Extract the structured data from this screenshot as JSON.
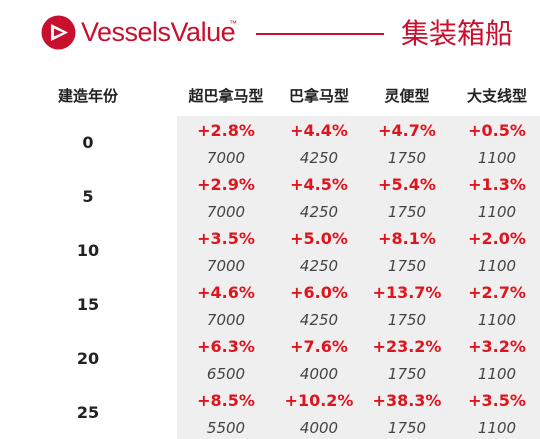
{
  "brand": {
    "name": "VesselsValue",
    "trademark": "™",
    "title": "集装箱船",
    "color": "#c8102e"
  },
  "table": {
    "age_header": "建造年份",
    "columns": [
      "超巴拿马型",
      "巴拿马型",
      "灵便型",
      "大支线型"
    ],
    "rows": [
      {
        "age": "0",
        "changes": [
          "+2.8%",
          "+4.4%",
          "+4.7%",
          "+0.5%"
        ],
        "sizes": [
          "7000",
          "4250",
          "1750",
          "1100"
        ]
      },
      {
        "age": "5",
        "changes": [
          "+2.9%",
          "+4.5%",
          "+5.4%",
          "+1.3%"
        ],
        "sizes": [
          "7000",
          "4250",
          "1750",
          "1100"
        ]
      },
      {
        "age": "10",
        "changes": [
          "+3.5%",
          "+5.0%",
          "+8.1%",
          "+2.0%"
        ],
        "sizes": [
          "7000",
          "4250",
          "1750",
          "1100"
        ]
      },
      {
        "age": "15",
        "changes": [
          "+4.6%",
          "+6.0%",
          "+13.7%",
          "+2.7%"
        ],
        "sizes": [
          "7000",
          "4250",
          "1750",
          "1100"
        ]
      },
      {
        "age": "20",
        "changes": [
          "+6.3%",
          "+7.6%",
          "+23.2%",
          "+3.2%"
        ],
        "sizes": [
          "6500",
          "4000",
          "1750",
          "1100"
        ]
      },
      {
        "age": "25",
        "changes": [
          "+8.5%",
          "+10.2%",
          "+38.3%",
          "+3.5%"
        ],
        "sizes": [
          "5500",
          "4000",
          "1750",
          "1100"
        ]
      }
    ],
    "colors": {
      "change": "#e0141e",
      "panel": "#efefef"
    }
  }
}
